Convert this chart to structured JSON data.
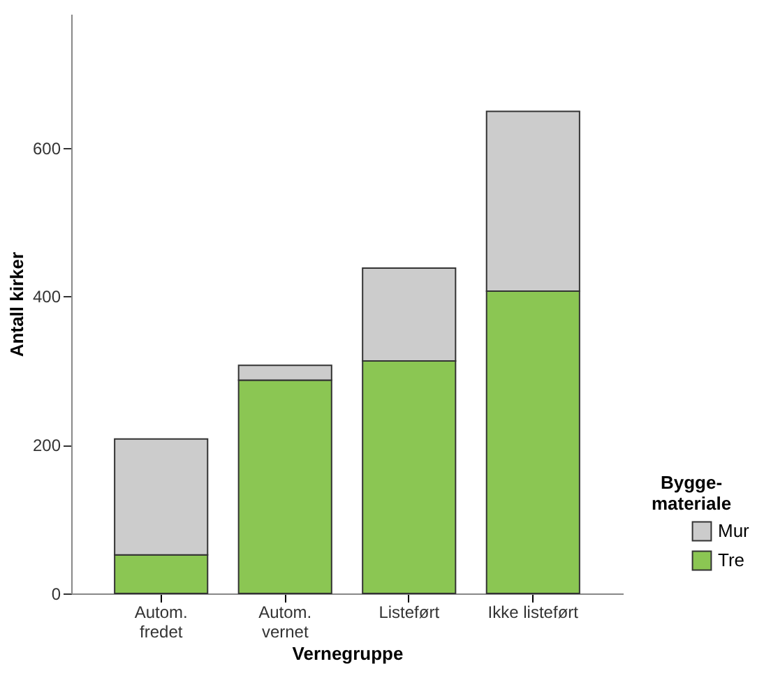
{
  "chart_data": {
    "type": "bar",
    "stacked": true,
    "categories": [
      "Autom.\nfredet",
      "Autom.\nvernet",
      "Listeført",
      "Ikke listeført"
    ],
    "series": [
      {
        "name": "Tre",
        "color": "#8bc653",
        "values": [
          52,
          287,
          313,
          407
        ]
      },
      {
        "name": "Mur",
        "color": "#cccccc",
        "values": [
          156,
          20,
          125,
          242
        ]
      }
    ],
    "xlabel": "Vernegruppe",
    "ylabel": "Antall kirker",
    "legend_title": "Bygge-\nmateriale",
    "ylim": [
      0,
      780
    ],
    "yticks": [
      0,
      200,
      400,
      600
    ],
    "grid": false,
    "legend": "right"
  }
}
